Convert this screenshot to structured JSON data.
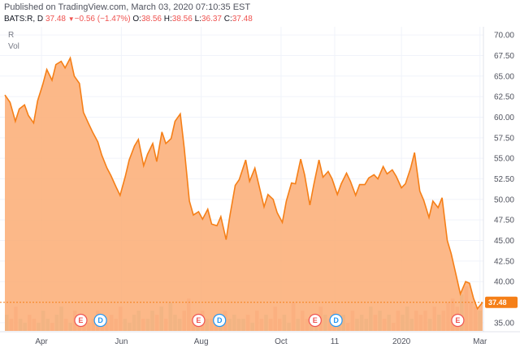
{
  "header": {
    "published": "Published on TradingView.com, March 03, 2020 07:10:35 EST",
    "symbol": "BATS:R, D",
    "last": "37.48",
    "change": "−0.56 (−1.47%)",
    "o_label": "O:",
    "o_value": "38.56",
    "h_label": "H:",
    "h_value": "38.56",
    "l_label": "L:",
    "l_value": "36.37",
    "c_label": "C:",
    "c_value": "37.48"
  },
  "pane": {
    "symbol_label": "R",
    "volume_label": "Vol"
  },
  "price_tag": "37.48",
  "colors": {
    "line": "#f57f17",
    "area": "#fbab73",
    "down": "#ef5350",
    "dividend": "#2196f3"
  },
  "chart_data": {
    "type": "area",
    "ylim": [
      34,
      71
    ],
    "yticks": [
      "70.00",
      "67.50",
      "65.00",
      "62.50",
      "60.00",
      "57.50",
      "55.00",
      "52.50",
      "50.00",
      "47.50",
      "45.00",
      "42.50",
      "40.00",
      "35.00"
    ],
    "ytick_values": [
      70,
      67.5,
      65,
      62.5,
      60,
      57.5,
      55,
      52.5,
      50,
      47.5,
      45,
      42.5,
      40,
      35
    ],
    "x_tick_labels": [
      {
        "label": "Apr",
        "date": "2019-04-01"
      },
      {
        "label": "Jun",
        "date": "2019-06-01"
      },
      {
        "label": "Aug",
        "date": "2019-08-01"
      },
      {
        "label": "Oct",
        "date": "2019-10-01"
      },
      {
        "label": "11",
        "date": "2019-11-11"
      },
      {
        "label": "2020",
        "date": "2020-01-01"
      },
      {
        "label": "Mar",
        "date": "2020-03-01"
      }
    ],
    "x_range": [
      "2019-03-04",
      "2020-03-03"
    ],
    "series": [
      {
        "dates": [
          "2019-03-04",
          "2019-03-08",
          "2019-03-12",
          "2019-03-15",
          "2019-03-19",
          "2019-03-22",
          "2019-03-26",
          "2019-03-29",
          "2019-04-02",
          "2019-04-05",
          "2019-04-09",
          "2019-04-12",
          "2019-04-16",
          "2019-04-19",
          "2019-04-23",
          "2019-04-26",
          "2019-04-30",
          "2019-05-03",
          "2019-05-07",
          "2019-05-10",
          "2019-05-14",
          "2019-05-17",
          "2019-05-21",
          "2019-05-24",
          "2019-05-28",
          "2019-05-31",
          "2019-06-04",
          "2019-06-07",
          "2019-06-11",
          "2019-06-14",
          "2019-06-18",
          "2019-06-21",
          "2019-06-25",
          "2019-06-28",
          "2019-07-02",
          "2019-07-05",
          "2019-07-09",
          "2019-07-12",
          "2019-07-16",
          "2019-07-19",
          "2019-07-23",
          "2019-07-26",
          "2019-07-30",
          "2019-08-02",
          "2019-08-06",
          "2019-08-09",
          "2019-08-13",
          "2019-08-16",
          "2019-08-20",
          "2019-08-23",
          "2019-08-27",
          "2019-08-30",
          "2019-09-04",
          "2019-09-07",
          "2019-09-11",
          "2019-09-14",
          "2019-09-18",
          "2019-09-21",
          "2019-09-25",
          "2019-09-28",
          "2019-10-02",
          "2019-10-05",
          "2019-10-09",
          "2019-10-12",
          "2019-10-16",
          "2019-10-19",
          "2019-10-23",
          "2019-10-26",
          "2019-10-30",
          "2019-11-02",
          "2019-11-06",
          "2019-11-09",
          "2019-11-13",
          "2019-11-16",
          "2019-11-20",
          "2019-11-23",
          "2019-11-27",
          "2019-11-30",
          "2019-12-04",
          "2019-12-07",
          "2019-12-11",
          "2019-12-14",
          "2019-12-18",
          "2019-12-21",
          "2019-12-25",
          "2019-12-28",
          "2020-01-01",
          "2020-01-04",
          "2020-01-08",
          "2020-01-11",
          "2020-01-15",
          "2020-01-18",
          "2020-01-22",
          "2020-01-25",
          "2020-01-29",
          "2020-02-01",
          "2020-02-05",
          "2020-02-08",
          "2020-02-12",
          "2020-02-15",
          "2020-02-19",
          "2020-02-22",
          "2020-02-25",
          "2020-02-28",
          "2020-03-03"
        ],
        "values": [
          62.7,
          61.8,
          59.5,
          61.0,
          61.5,
          60.2,
          59.3,
          62.0,
          64.0,
          65.8,
          64.5,
          66.4,
          66.8,
          66.0,
          67.2,
          65.0,
          64.1,
          60.6,
          59.2,
          58.2,
          57.0,
          55.4,
          53.8,
          52.9,
          51.5,
          50.5,
          52.8,
          54.8,
          56.5,
          57.3,
          54.1,
          55.5,
          56.8,
          54.6,
          58.2,
          56.8,
          57.4,
          59.5,
          60.4,
          56.3,
          49.8,
          48.1,
          48.5,
          47.6,
          48.8,
          47.0,
          46.8,
          47.9,
          45.1,
          48.1,
          51.7,
          52.4,
          54.8,
          52.2,
          53.8,
          51.8,
          49.1,
          50.6,
          50.0,
          48.4,
          47.2,
          49.8,
          52.0,
          51.9,
          54.9,
          53.0,
          49.3,
          51.8,
          54.8,
          52.7,
          53.4,
          52.5,
          50.6,
          51.9,
          53.2,
          52.2,
          50.5,
          51.8,
          51.8,
          52.6,
          53.0,
          52.5,
          54.0,
          53.1,
          53.6,
          52.8,
          51.4,
          51.9,
          53.8,
          55.7,
          51.0,
          49.9,
          47.8,
          49.8,
          49.0,
          50.2,
          45.0,
          43.4,
          40.6,
          38.5,
          40.0,
          39.8,
          38.0,
          36.7,
          37.48
        ]
      }
    ],
    "volume": {
      "values": [
        4,
        3,
        6,
        3,
        2,
        4,
        3,
        2,
        5,
        3,
        2,
        4,
        6,
        3,
        2,
        5,
        3,
        4,
        2,
        3,
        5,
        3,
        2,
        4,
        3,
        6,
        3,
        2,
        4,
        5,
        3,
        3,
        5,
        4,
        6,
        3,
        7,
        4,
        3,
        5,
        8,
        3,
        4,
        5,
        3,
        3,
        4,
        2,
        5,
        3,
        4,
        3,
        3,
        4,
        2,
        5,
        3,
        4,
        3,
        6,
        3,
        4,
        2,
        7,
        3,
        5,
        3,
        4,
        3,
        6,
        4,
        3,
        5,
        3,
        4,
        2,
        5,
        3,
        4,
        3,
        6,
        4,
        5,
        3,
        4,
        2,
        5,
        4,
        6,
        3,
        5,
        4,
        5,
        3,
        6,
        4,
        5,
        7,
        8,
        6,
        9,
        11,
        7,
        6,
        5
      ],
      "max": 12
    },
    "events": [
      {
        "label": "E",
        "date": "2019-05-01",
        "kind": "earnings"
      },
      {
        "label": "D",
        "date": "2019-05-16",
        "kind": "dividend"
      },
      {
        "label": "E",
        "date": "2019-07-30",
        "kind": "earnings"
      },
      {
        "label": "D",
        "date": "2019-08-15",
        "kind": "dividend"
      },
      {
        "label": "E",
        "date": "2019-10-27",
        "kind": "earnings"
      },
      {
        "label": "D",
        "date": "2019-11-12",
        "kind": "dividend"
      },
      {
        "label": "E",
        "date": "2020-02-13",
        "kind": "earnings"
      }
    ],
    "last_price": 37.48
  }
}
